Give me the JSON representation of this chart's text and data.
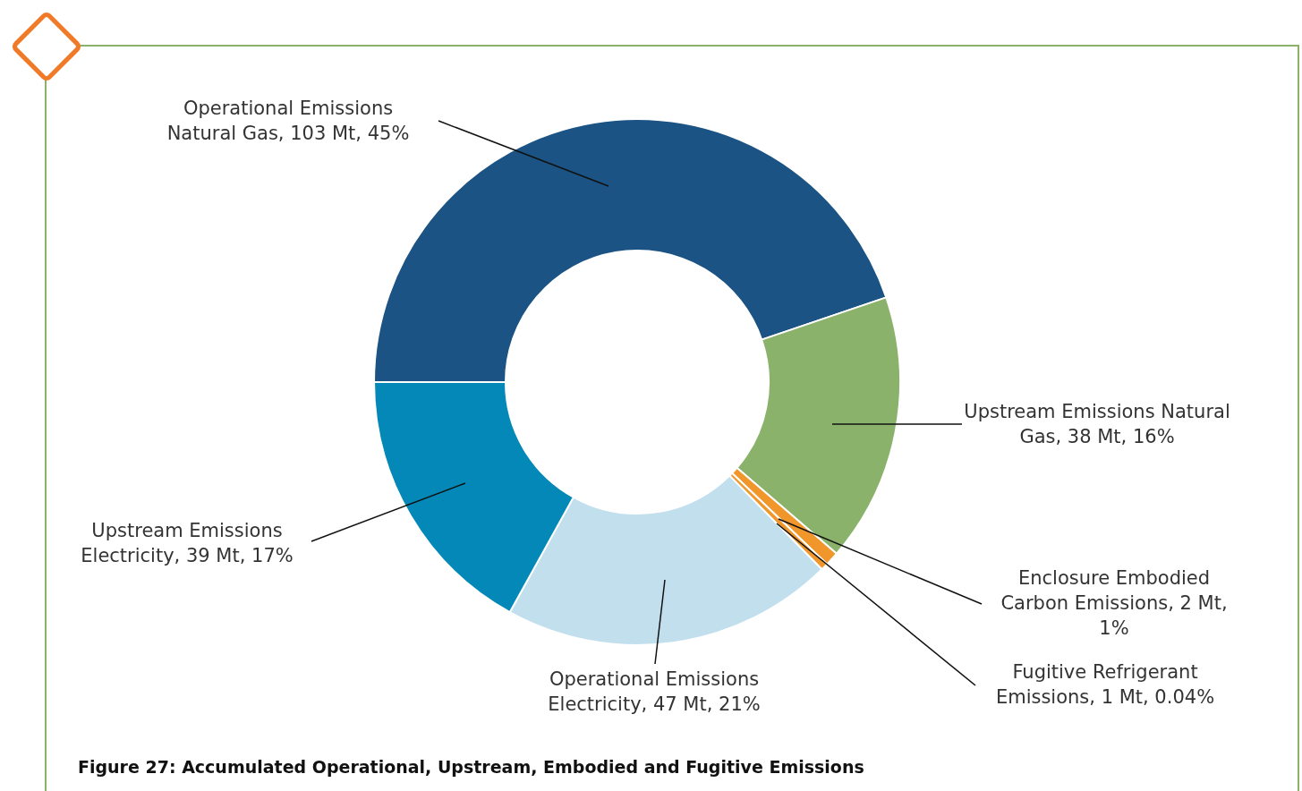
{
  "chart_data": {
    "type": "donut",
    "title": "Figure 27: Accumulated Operational, Upstream, Embodied and Fugitive Emissions",
    "categories": [
      "Operational Emissions Natural Gas",
      "Upstream Emissions Natural Gas",
      "Enclosure Embodied Carbon Emissions",
      "Fugitive Refrigerant Emissions",
      "Operational Emissions Electricity",
      "Upstream Emissions Electricity"
    ],
    "values": [
      103,
      38,
      2,
      1,
      47,
      39
    ],
    "colors": [
      "#1a5384",
      "#8ab26b",
      "#f0962a",
      "#f0962a",
      "#c2dfee",
      "#0388b8"
    ],
    "value_labels": [
      "103 Mt, 45%",
      "38 Mt, 16%",
      "2 Mt, 1%",
      "1 Mt, 0.04%",
      "47 Mt, 21%",
      "39 Mt, 17%"
    ]
  }
}
